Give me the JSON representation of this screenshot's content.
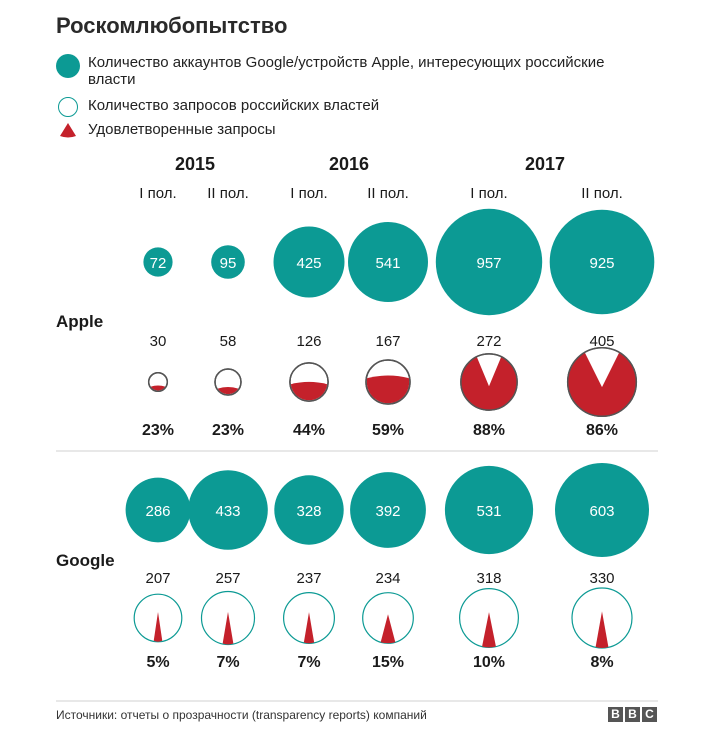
{
  "title": "Роскомлюбопытство",
  "legend": {
    "accounts": "Количество аккаунтов Google/устройств Apple, интересующих российские власти",
    "requests": "Количество запросов российских властей",
    "satisfied": "Удовлетворенные запросы"
  },
  "source": "Источники: отчеты о прозрачности (transparency reports) компаний",
  "logo": [
    "B",
    "B",
    "C"
  ],
  "colors": {
    "accounts": "#0c9a94",
    "outline": "#0c9a94",
    "satisfied": "#c4212b"
  },
  "chart_data": {
    "type": "bubble",
    "years": [
      "2015",
      "2016",
      "2017"
    ],
    "periods": [
      "I пол.",
      "II пол.",
      "I пол.",
      "II пол.",
      "I пол.",
      "II пол."
    ],
    "series": [
      {
        "name": "Apple",
        "accounts": [
          72,
          95,
          425,
          541,
          957,
          925
        ],
        "requests": [
          30,
          58,
          126,
          167,
          272,
          405
        ],
        "satisfied_pct": [
          23,
          23,
          44,
          59,
          88,
          86
        ],
        "satisfied_labels": [
          "23%",
          "23%",
          "44%",
          "59%",
          "88%",
          "86%"
        ]
      },
      {
        "name": "Google",
        "accounts": [
          286,
          433,
          328,
          392,
          531,
          603
        ],
        "requests": [
          207,
          257,
          237,
          234,
          318,
          330
        ],
        "satisfied_pct": [
          5,
          7,
          7,
          15,
          10,
          8
        ],
        "satisfied_labels": [
          "5%",
          "7%",
          "7%",
          "15%",
          "10%",
          "8%"
        ]
      }
    ]
  }
}
